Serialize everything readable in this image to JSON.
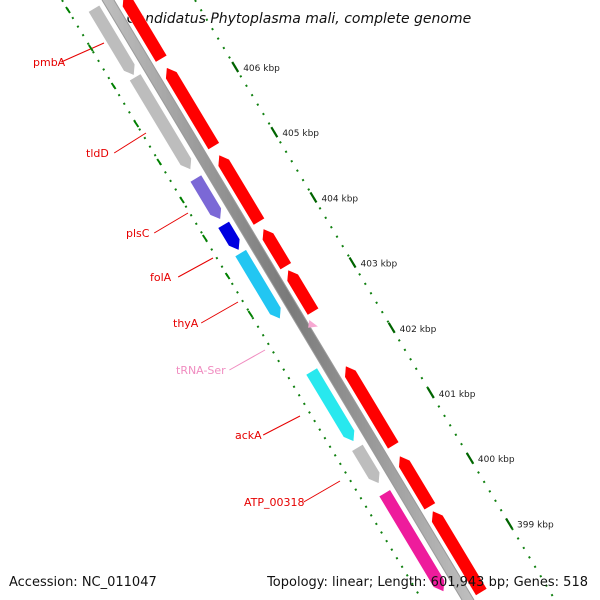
{
  "title": "Candidatus Phytoplasma mali, complete genome",
  "footer": {
    "accession": "Accession: NC_011047",
    "summary": "Topology: linear; Length: 601,943 bp; Genes: 518"
  },
  "scale_labels": [
    "406 kbp",
    "405 kbp",
    "404 kbp",
    "403 kbp",
    "402 kbp",
    "401 kbp",
    "400 kbp",
    "399 kbp"
  ],
  "genes": [
    {
      "name": "pmbA",
      "color": "#bdbdbd",
      "label_color": "#e60000"
    },
    {
      "name": "tldD",
      "color": "#bdbdbd",
      "label_color": "#e60000"
    },
    {
      "name": "plsC",
      "color": "#7b68d6",
      "label_color": "#e60000"
    },
    {
      "name": "folA",
      "color": "#0000e0",
      "label_color": "#e60000"
    },
    {
      "name": "thyA",
      "color": "#22c6f2",
      "label_color": "#e60000"
    },
    {
      "name": "tRNA-Ser",
      "color": "#f7a8d2",
      "label_color": "#f08cc0"
    },
    {
      "name": "ackA",
      "color": "#28e8ee",
      "label_color": "#e60000"
    },
    {
      "name": "ATP_00318",
      "color": "#bdbdbd",
      "label_color": "#e60000"
    },
    {
      "name": "",
      "color": "#ee1c9c",
      "label_color": "#e60000"
    }
  ],
  "colors": {
    "cds_forward": "#ff0000",
    "backbone": "#8f8f8f",
    "tick_major": "#006400",
    "tick_minor": "#008000"
  }
}
